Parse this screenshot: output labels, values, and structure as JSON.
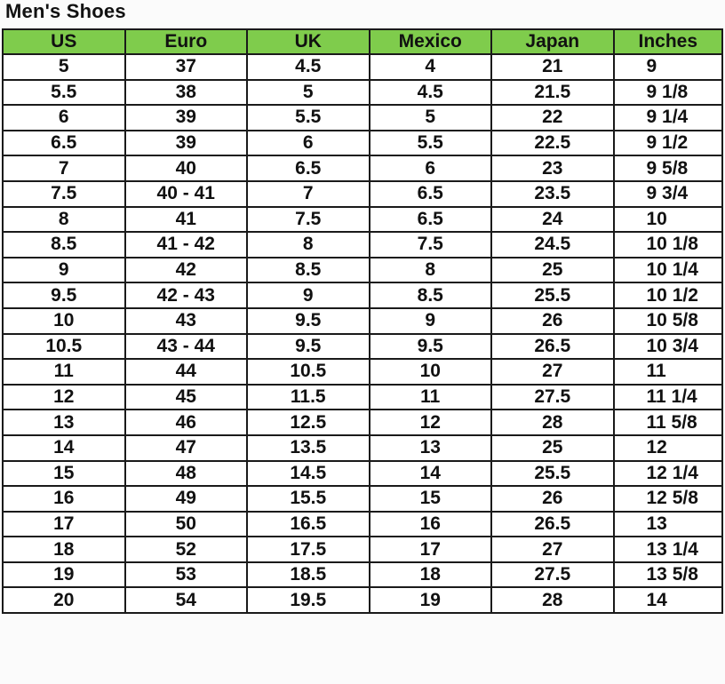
{
  "title": "Men's Shoes",
  "header_color": "#7fcc4c",
  "columns": [
    "US",
    "Euro",
    "UK",
    "Mexico",
    "Japan",
    "Inches"
  ],
  "rows": [
    [
      "5",
      "37",
      "4.5",
      "4",
      "21",
      "9"
    ],
    [
      "5.5",
      "38",
      "5",
      "4.5",
      "21.5",
      "9 1/8"
    ],
    [
      "6",
      "39",
      "5.5",
      "5",
      "22",
      "9 1/4"
    ],
    [
      "6.5",
      "39",
      "6",
      "5.5",
      "22.5",
      "9 1/2"
    ],
    [
      "7",
      "40",
      "6.5",
      "6",
      "23",
      "9 5/8"
    ],
    [
      "7.5",
      "40 - 41",
      "7",
      "6.5",
      "23.5",
      "9 3/4"
    ],
    [
      "8",
      "41",
      "7.5",
      "6.5",
      "24",
      "10"
    ],
    [
      "8.5",
      "41 - 42",
      "8",
      "7.5",
      "24.5",
      "10 1/8"
    ],
    [
      "9",
      "42",
      "8.5",
      "8",
      "25",
      "10 1/4"
    ],
    [
      "9.5",
      "42 - 43",
      "9",
      "8.5",
      "25.5",
      "10 1/2"
    ],
    [
      "10",
      "43",
      "9.5",
      "9",
      "26",
      "10 5/8"
    ],
    [
      "10.5",
      "43 - 44",
      "9.5",
      "9.5",
      "26.5",
      "10 3/4"
    ],
    [
      "11",
      "44",
      "10.5",
      "10",
      "27",
      "11"
    ],
    [
      "12",
      "45",
      "11.5",
      "11",
      "27.5",
      "11 1/4"
    ],
    [
      "13",
      "46",
      "12.5",
      "12",
      "28",
      "11 5/8"
    ],
    [
      "14",
      "47",
      "13.5",
      "13",
      "25",
      "12"
    ],
    [
      "15",
      "48",
      "14.5",
      "14",
      "25.5",
      "12 1/4"
    ],
    [
      "16",
      "49",
      "15.5",
      "15",
      "26",
      "12 5/8"
    ],
    [
      "17",
      "50",
      "16.5",
      "16",
      "26.5",
      "13"
    ],
    [
      "18",
      "52",
      "17.5",
      "17",
      "27",
      "13 1/4"
    ],
    [
      "19",
      "53",
      "18.5",
      "18",
      "27.5",
      "13 5/8"
    ],
    [
      "20",
      "54",
      "19.5",
      "19",
      "28",
      "14"
    ]
  ]
}
